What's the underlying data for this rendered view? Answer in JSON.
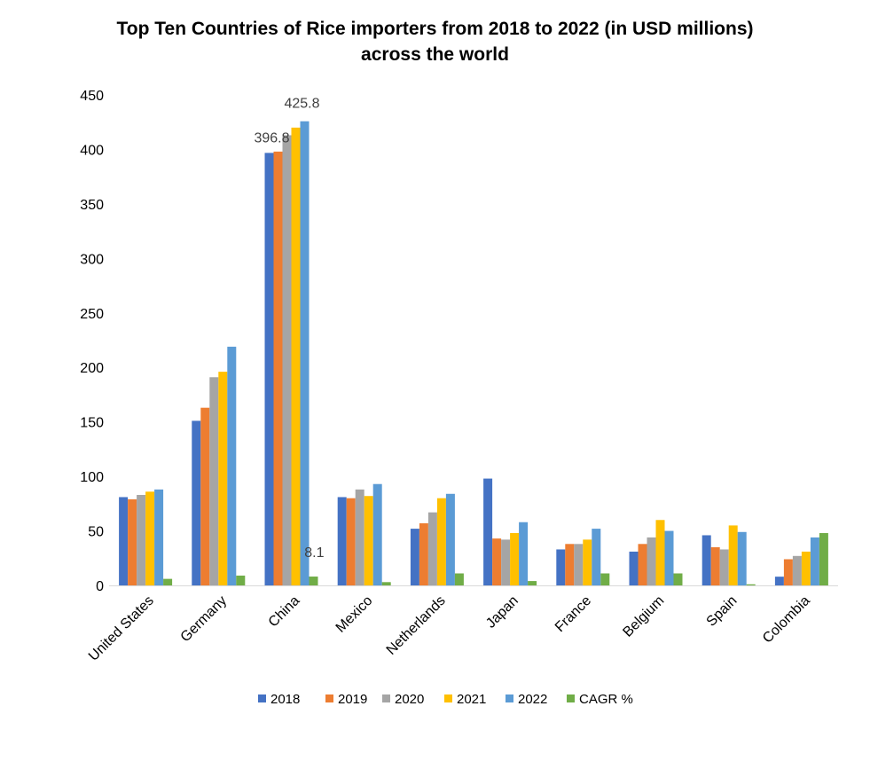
{
  "chart_data": {
    "type": "bar",
    "title_line1": "Top Ten Countries of Rice importers from 2018 to 2022 (in USD millions)",
    "title_line2": "across the world",
    "xlabel": "",
    "ylabel": "",
    "ylim": [
      0,
      450
    ],
    "yticks": [
      0,
      50,
      100,
      150,
      200,
      250,
      300,
      350,
      400,
      450
    ],
    "grid": false,
    "legend_position": "bottom",
    "categories": [
      "United States",
      "Germany",
      "China",
      "Mexico",
      "Netherlands",
      "Japan",
      "France",
      "Belgium",
      "Spain",
      "Colombia"
    ],
    "series": [
      {
        "name": "2018",
        "color": "#4472C4",
        "values": [
          81,
          151,
          396.8,
          81,
          52,
          98,
          33,
          31,
          46,
          8
        ]
      },
      {
        "name": "2019",
        "color": "#ED7D31",
        "values": [
          79,
          163,
          398,
          80,
          57,
          43,
          38,
          38,
          35,
          24
        ]
      },
      {
        "name": "2020",
        "color": "#A5A5A5",
        "values": [
          83,
          191,
          413,
          88,
          67,
          42,
          38,
          44,
          33,
          27
        ]
      },
      {
        "name": "2021",
        "color": "#FFC000",
        "values": [
          86,
          196,
          420,
          82,
          80,
          48,
          42,
          60,
          55,
          31
        ]
      },
      {
        "name": "2022",
        "color": "#5B9BD5",
        "values": [
          88,
          219,
          425.8,
          93,
          84,
          58,
          52,
          50,
          49,
          44
        ]
      },
      {
        "name": "CAGR %",
        "color": "#70AD47",
        "values": [
          6,
          9,
          8.1,
          3,
          11,
          4,
          11,
          11,
          1,
          48
        ]
      }
    ],
    "data_labels": [
      {
        "category": "China",
        "series": "2018",
        "text": "396.8"
      },
      {
        "category": "China",
        "series": "2022",
        "text": "425.8"
      },
      {
        "category": "China",
        "series": "CAGR %",
        "text": "8.1"
      }
    ]
  }
}
